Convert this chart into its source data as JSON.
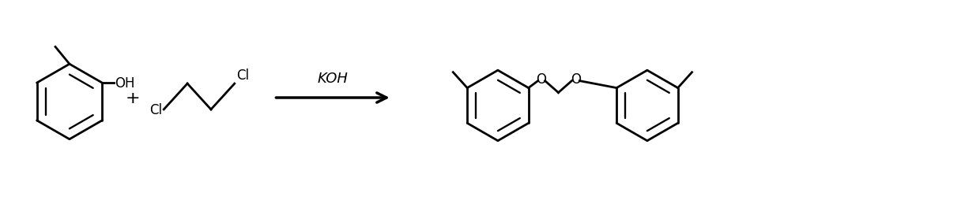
{
  "bg_color": "#ffffff",
  "line_color": "#000000",
  "line_width": 2.0,
  "font_size_label": 12,
  "font_size_plus": 16,
  "plus_text": "+",
  "koh_text": "KOH",
  "cl_text": "Cl",
  "oh_text": "OH",
  "figsize": [
    12.4,
    2.55
  ],
  "dpi": 100
}
